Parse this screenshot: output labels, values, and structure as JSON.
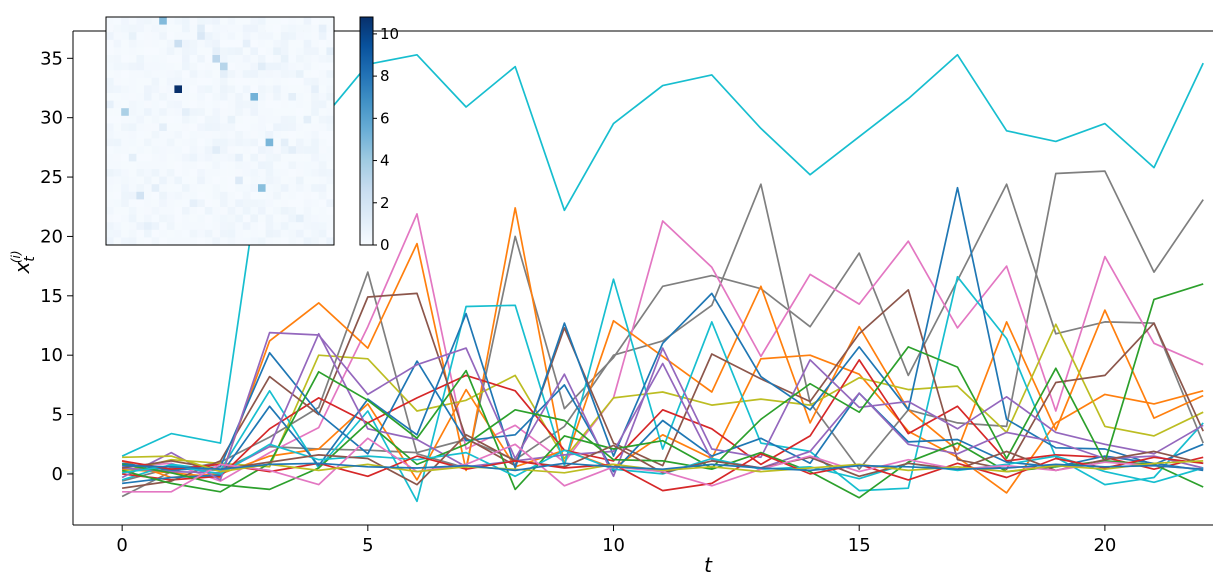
{
  "chart_data": [
    {
      "type": "line",
      "title": "",
      "xlabel": "t",
      "ylabel": "x_t^(i)",
      "xlim": [
        -1,
        22.2
      ],
      "ylim": [
        -4.3,
        37.3
      ],
      "xticks": [
        0,
        5,
        10,
        15,
        20
      ],
      "yticks": [
        0,
        5,
        10,
        15,
        20,
        25,
        30,
        35
      ],
      "x": [
        0,
        1,
        2,
        3,
        4,
        5,
        6,
        7,
        8,
        9,
        10,
        11,
        12,
        13,
        14,
        15,
        16,
        17,
        18,
        19,
        20,
        21,
        22
      ],
      "series": [
        {
          "color": "#17becf",
          "values": [
            1.5,
            3.4,
            2.6,
            31.0,
            29.5,
            34.5,
            35.3,
            30.9,
            34.3,
            22.2,
            29.5,
            32.7,
            33.6,
            29.1,
            25.2,
            28.4,
            31.6,
            35.3,
            28.9,
            28.0,
            29.5,
            25.8,
            34.6
          ]
        },
        {
          "color": "#7f7f7f",
          "values": [
            -1.9,
            0.2,
            1.0,
            3.1,
            5.6,
            17.0,
            1.7,
            0.5,
            20.0,
            5.5,
            9.8,
            15.8,
            16.7,
            15.6,
            12.4,
            18.6,
            8.3,
            16.3,
            24.4,
            11.8,
            12.8,
            12.7,
            2.6
          ]
        },
        {
          "color": "#7f7f7f",
          "values": [
            -0.6,
            0.5,
            0.3,
            2.3,
            2.1,
            2.0,
            1.8,
            2.9,
            1.2,
            4.0,
            10.0,
            11.2,
            14.2,
            24.4,
            6.0,
            0.4,
            5.4,
            4.3,
            4.0,
            25.3,
            25.5,
            17.0,
            23.1
          ]
        },
        {
          "color": "#e377c2",
          "values": [
            0.6,
            0.9,
            -0.6,
            1.8,
            3.9,
            12.4,
            21.9,
            2.1,
            4.1,
            1.0,
            6.4,
            21.3,
            17.4,
            9.9,
            16.8,
            14.3,
            19.6,
            12.3,
            17.5,
            5.3,
            18.3,
            11.0,
            9.2
          ]
        },
        {
          "color": "#ff7f0e",
          "values": [
            0.4,
            0.1,
            -0.3,
            11.2,
            14.4,
            10.6,
            19.4,
            0.3,
            22.4,
            0.8,
            12.9,
            9.9,
            6.9,
            15.8,
            4.3,
            12.4,
            5.4,
            2.0,
            12.8,
            3.7,
            13.8,
            4.7,
            6.6
          ]
        },
        {
          "color": "#ff7f0e",
          "values": [
            1.1,
            -0.3,
            0.0,
            1.5,
            2.1,
            5.9,
            -0.5,
            7.1,
            0.6,
            2.0,
            0.5,
            3.3,
            1.3,
            9.7,
            10.0,
            8.4,
            3.6,
            1.4,
            -1.6,
            4.3,
            6.7,
            5.9,
            7.0
          ]
        },
        {
          "color": "#bcbd22",
          "values": [
            0.2,
            1.2,
            0.9,
            0.6,
            10.0,
            9.7,
            5.3,
            6.2,
            8.3,
            1.3,
            6.4,
            6.9,
            5.8,
            6.3,
            5.8,
            8.1,
            7.1,
            7.4,
            3.5,
            12.6,
            4.0,
            3.2,
            5.2
          ]
        },
        {
          "color": "#17becf",
          "values": [
            -0.5,
            0.8,
            0.3,
            7.0,
            0.5,
            5.3,
            -2.3,
            14.1,
            14.2,
            0.7,
            16.4,
            2.1,
            12.8,
            2.6,
            1.9,
            -1.4,
            -1.2,
            16.6,
            11.4,
            1.4,
            -0.9,
            -0.3,
            4.3
          ]
        },
        {
          "color": "#d62728",
          "values": [
            0.0,
            -0.5,
            -0.2,
            3.8,
            6.4,
            4.3,
            6.4,
            8.3,
            7.0,
            2.0,
            1.1,
            5.4,
            3.8,
            0.8,
            3.2,
            9.6,
            3.4,
            5.7,
            1.1,
            1.6,
            1.4,
            0.4,
            1.4
          ]
        },
        {
          "color": "#8c564b",
          "values": [
            -1.2,
            -0.6,
            1.1,
            8.2,
            5.0,
            14.9,
            15.2,
            3.0,
            0.7,
            12.3,
            2.6,
            0.7,
            10.1,
            8.0,
            6.1,
            11.8,
            15.5,
            1.2,
            0.4,
            7.7,
            8.3,
            12.7,
            3.6
          ]
        },
        {
          "color": "#1f77b4",
          "values": [
            -0.8,
            -0.3,
            -0.1,
            5.7,
            0.7,
            6.3,
            3.3,
            13.5,
            0.5,
            12.7,
            1.5,
            11.0,
            15.2,
            8.2,
            5.4,
            10.7,
            5.4,
            24.1,
            4.6,
            2.2,
            2.1,
            0.8,
            2.5
          ]
        },
        {
          "color": "#1f77b4",
          "values": [
            0.9,
            0.3,
            0.6,
            10.2,
            5.1,
            1.7,
            9.5,
            2.8,
            3.3,
            7.5,
            0.2,
            4.5,
            1.5,
            3.0,
            0.9,
            6.8,
            2.7,
            2.9,
            1.0,
            0.6,
            1.5,
            0.9,
            0.3
          ]
        },
        {
          "color": "#9467bd",
          "values": [
            -0.3,
            1.8,
            -0.5,
            11.9,
            11.7,
            6.7,
            9.2,
            10.6,
            1.3,
            8.4,
            -0.2,
            10.6,
            2.1,
            1.4,
            9.6,
            5.6,
            6.1,
            3.8,
            6.5,
            3.5,
            2.5,
            1.7,
            4.1
          ]
        },
        {
          "color": "#9467bd",
          "values": [
            0.5,
            0.2,
            0.1,
            2.3,
            11.8,
            3.8,
            2.9,
            0.6,
            1.1,
            1.6,
            1.9,
            9.3,
            1.2,
            0.5,
            1.9,
            6.8,
            2.5,
            1.7,
            3.5,
            2.7,
            1.3,
            1.5,
            0.5
          ]
        },
        {
          "color": "#2ca02c",
          "values": [
            0.3,
            -0.8,
            -1.5,
            0.9,
            8.6,
            6.2,
            3.0,
            8.7,
            -1.3,
            3.2,
            2.1,
            2.8,
            0.5,
            4.6,
            7.6,
            5.2,
            10.7,
            9.0,
            1.3,
            8.9,
            1.0,
            14.7,
            16.0
          ]
        },
        {
          "color": "#2ca02c",
          "values": [
            0.8,
            0.1,
            -0.9,
            -1.3,
            0.5,
            4.3,
            0.8,
            2.5,
            5.4,
            4.5,
            1.2,
            1.1,
            0.4,
            1.8,
            0.2,
            -2.0,
            1.0,
            2.6,
            0.2,
            0.6,
            1.1,
            0.8,
            -1.1
          ]
        },
        {
          "color": "#17becf",
          "values": [
            0.1,
            0.7,
            0.0,
            2.5,
            1.2,
            1.5,
            1.2,
            1.8,
            -0.2,
            2.0,
            0.4,
            0.0,
            1.3,
            0.4,
            0.6,
            -0.4,
            0.9,
            0.3,
            0.8,
            1.5,
            0.2,
            -0.7,
            0.5
          ]
        },
        {
          "color": "#8c564b",
          "values": [
            0.5,
            1.1,
            0.4,
            1.0,
            1.6,
            1.3,
            -0.9,
            3.3,
            1.1,
            0.6,
            2.4,
            0.1,
            1.1,
            0.5,
            1.4,
            -0.2,
            0.9,
            0.4,
            1.9,
            0.3,
            1.2,
            1.9,
            0.9
          ]
        },
        {
          "color": "#d62728",
          "values": [
            1.1,
            0.4,
            0.8,
            0.2,
            0.9,
            -0.2,
            1.5,
            0.4,
            1.1,
            0.5,
            0.8,
            -1.4,
            -0.8,
            1.7,
            0.0,
            0.8,
            -0.5,
            0.9,
            -0.3,
            1.3,
            0.5,
            1.4,
            0.9
          ]
        },
        {
          "color": "#e377c2",
          "values": [
            -1.5,
            -1.5,
            0.8,
            0.3,
            -0.9,
            3.0,
            0.2,
            0.8,
            2.5,
            -1.0,
            0.6,
            0.2,
            -1.0,
            0.4,
            1.5,
            0.2,
            1.2,
            0.4,
            0.7,
            0.3,
            1.0,
            0.7,
            0.4
          ]
        },
        {
          "color": "#bcbd22",
          "values": [
            1.4,
            1.5,
            0.2,
            0.8,
            0.3,
            0.8,
            0.2,
            0.6,
            0.4,
            0.1,
            0.8,
            0.3,
            0.6,
            0.2,
            0.5,
            0.8,
            0.3,
            0.6,
            0.2,
            0.7,
            0.4,
            0.9,
            1.1
          ]
        },
        {
          "color": "#1f77b4",
          "values": [
            0.7,
            0.6,
            0.4,
            0.8,
            0.9,
            0.6,
            0.5,
            0.7,
            0.3,
            0.9,
            0.6,
            0.4,
            0.8,
            0.5,
            0.3,
            0.7,
            0.6,
            0.4,
            0.5,
            0.8,
            0.6,
            0.7,
            0.4
          ]
        }
      ]
    },
    {
      "type": "heatmap",
      "title": "",
      "cmap": "Blues",
      "colorbar_ticks": [
        0,
        2,
        4,
        6,
        8,
        10
      ],
      "colorbar_range": [
        0,
        10.8
      ],
      "grid_size": 30,
      "baseline_value": 0.15,
      "cells": [
        {
          "row": 0,
          "col": 7,
          "value": 4.8
        },
        {
          "row": 1,
          "col": 12,
          "value": 1.2
        },
        {
          "row": 1,
          "col": 28,
          "value": 0.9
        },
        {
          "row": 2,
          "col": 3,
          "value": 0.8
        },
        {
          "row": 2,
          "col": 12,
          "value": 1.6
        },
        {
          "row": 3,
          "col": 9,
          "value": 2.4
        },
        {
          "row": 3,
          "col": 18,
          "value": 0.9
        },
        {
          "row": 4,
          "col": 14,
          "value": 0.9
        },
        {
          "row": 4,
          "col": 22,
          "value": 0.8
        },
        {
          "row": 4,
          "col": 29,
          "value": 1.0
        },
        {
          "row": 5,
          "col": 14,
          "value": 3.0
        },
        {
          "row": 5,
          "col": 23,
          "value": 0.8
        },
        {
          "row": 6,
          "col": 15,
          "value": 3.2
        },
        {
          "row": 6,
          "col": 20,
          "value": 1.2
        },
        {
          "row": 7,
          "col": 15,
          "value": 1.0
        },
        {
          "row": 7,
          "col": 25,
          "value": 0.8
        },
        {
          "row": 9,
          "col": 9,
          "value": 10.8
        },
        {
          "row": 9,
          "col": 27,
          "value": 0.9
        },
        {
          "row": 10,
          "col": 19,
          "value": 5.2
        },
        {
          "row": 10,
          "col": 24,
          "value": 1.0
        },
        {
          "row": 11,
          "col": 0,
          "value": 0.9
        },
        {
          "row": 12,
          "col": 2,
          "value": 3.6
        },
        {
          "row": 12,
          "col": 10,
          "value": 1.0
        },
        {
          "row": 13,
          "col": 16,
          "value": 0.8
        },
        {
          "row": 13,
          "col": 26,
          "value": 1.0
        },
        {
          "row": 14,
          "col": 7,
          "value": 1.0
        },
        {
          "row": 16,
          "col": 21,
          "value": 5.0
        },
        {
          "row": 16,
          "col": 23,
          "value": 1.0
        },
        {
          "row": 17,
          "col": 14,
          "value": 1.2
        },
        {
          "row": 17,
          "col": 24,
          "value": 1.0
        },
        {
          "row": 18,
          "col": 3,
          "value": 1.0
        },
        {
          "row": 18,
          "col": 17,
          "value": 0.9
        },
        {
          "row": 21,
          "col": 17,
          "value": 1.4
        },
        {
          "row": 22,
          "col": 20,
          "value": 4.6
        },
        {
          "row": 22,
          "col": 6,
          "value": 1.0
        },
        {
          "row": 23,
          "col": 4,
          "value": 2.0
        },
        {
          "row": 24,
          "col": 11,
          "value": 0.9
        },
        {
          "row": 26,
          "col": 25,
          "value": 1.0
        },
        {
          "row": 27,
          "col": 5,
          "value": 0.9
        }
      ]
    }
  ]
}
